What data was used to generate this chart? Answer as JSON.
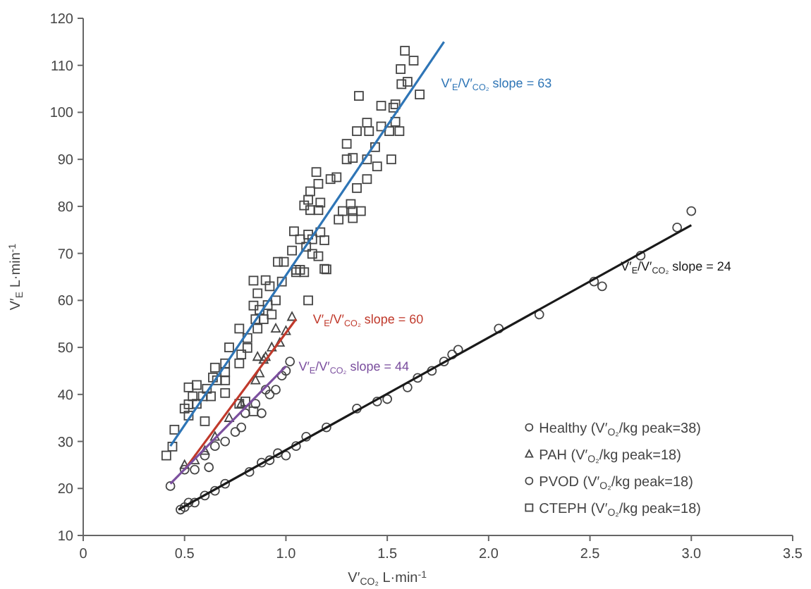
{
  "chart_data": {
    "type": "scatter",
    "xlabel": "V′$_{CO₂}$ L·min$^{-1}$",
    "ylabel": "V′$_{E}$ L·min$^{-1}$",
    "xlim": [
      0,
      3.5
    ],
    "ylim": [
      10,
      120
    ],
    "xticks": [
      0,
      {
        "value": 0.5,
        "label": "0.5"
      },
      {
        "value": 1,
        "label": "1.0"
      },
      {
        "value": 1.5,
        "label": "1.5"
      },
      {
        "value": 2,
        "label": "2.0"
      },
      {
        "value": 2.5,
        "label": "2.5"
      },
      {
        "value": 3,
        "label": "3.0"
      },
      {
        "value": 3.5,
        "label": "3.5"
      }
    ],
    "yticks": [
      10,
      20,
      30,
      40,
      50,
      60,
      70,
      80,
      90,
      100,
      110,
      120
    ],
    "grid": false,
    "legend": "bottom right",
    "series": [
      {
        "name": "Healthy (V′$_{O₂}$/kg peak=38)",
        "marker": "circle",
        "color": "#444444",
        "x": [
          0.48,
          0.5,
          0.52,
          0.55,
          0.6,
          0.65,
          0.7,
          0.82,
          0.88,
          0.92,
          0.96,
          1.0,
          1.05,
          1.1,
          1.2,
          1.35,
          1.45,
          1.5,
          1.6,
          1.65,
          1.72,
          1.78,
          1.82,
          1.85,
          2.05,
          2.25,
          2.52,
          2.56,
          2.75,
          2.93,
          3.0
        ],
        "values": [
          15.5,
          16,
          17,
          17,
          18.5,
          19.5,
          21,
          23.5,
          25.5,
          26,
          27.5,
          27,
          29,
          31,
          33,
          37,
          38.5,
          39,
          41.5,
          43.5,
          45,
          47,
          48.5,
          49.5,
          54,
          57,
          64,
          63,
          69.5,
          75.5,
          79
        ]
      },
      {
        "name": "PAH (V′$_{O₂}$/kg peak=18)",
        "marker": "triangle",
        "color": "#444444",
        "x": [
          0.5,
          0.55,
          0.6,
          0.65,
          0.72,
          0.78,
          0.85,
          0.86,
          0.87,
          0.89,
          0.9,
          0.93,
          0.95,
          0.97,
          1.0,
          1.03
        ],
        "values": [
          25,
          26,
          28,
          31,
          35,
          38,
          43,
          48,
          44.5,
          47.4,
          48,
          50,
          54,
          51,
          53.5,
          56.5
        ]
      },
      {
        "name": "PVOD (V′$_{O₂}$/kg peak=18)",
        "marker": "circle",
        "color": "#444444",
        "x": [
          0.43,
          0.5,
          0.55,
          0.6,
          0.62,
          0.65,
          0.7,
          0.75,
          0.78,
          0.8,
          0.85,
          0.88,
          0.9,
          0.92,
          0.95,
          0.98,
          1.0,
          1.02
        ],
        "values": [
          20.5,
          24,
          24,
          27,
          24.5,
          29,
          30,
          32,
          33,
          36,
          38,
          36,
          41,
          40,
          41,
          44,
          45,
          47
        ]
      },
      {
        "name": "CTEPH (V′$_{O₂}$/kg peak=18)",
        "marker": "square",
        "color": "#444444",
        "x": [
          1.587,
          1.63,
          1.566,
          1.57,
          1.6,
          1.66,
          1.36,
          1.54,
          1.47,
          1.53,
          1.54,
          1.4,
          1.35,
          1.41,
          1.47,
          1.51,
          1.56,
          1.3,
          1.44,
          1.3,
          1.33,
          1.4,
          1.45,
          1.52,
          1.4,
          1.35,
          1.15,
          1.22,
          1.25,
          1.16,
          1.12,
          1.11,
          1.09,
          1.17,
          1.12,
          1.16,
          1.32,
          1.33,
          1.37,
          1.33,
          1.26,
          1.28,
          1.04,
          1.11,
          1.17,
          1.07,
          1.13,
          1.19,
          1.03,
          1.1,
          1.16,
          1.13,
          0.96,
          0.99,
          1.19,
          1.05,
          1.07,
          0.84,
          0.9,
          1.05,
          1.09,
          1.2,
          1.11,
          0.92,
          0.98,
          0.86,
          0.84,
          0.87,
          0.91,
          0.95,
          0.85,
          0.89,
          0.93,
          0.86,
          0.77,
          0.81,
          0.81,
          0.72,
          0.78,
          0.77,
          0.7,
          0.65,
          0.7,
          0.64,
          0.56,
          0.52,
          0.61,
          0.66,
          0.7,
          0.54,
          0.59,
          0.63,
          0.52,
          0.56,
          0.7,
          0.5,
          0.52,
          0.6,
          0.45,
          0.44,
          0.41,
          0.84,
          0.77,
          0.8
        ],
        "values": [
          113.1,
          111,
          109.2,
          106,
          106.5,
          103.8,
          103.5,
          101.7,
          101.4,
          101,
          98,
          97.8,
          96,
          96,
          97,
          96,
          96,
          93.3,
          92.6,
          90,
          90.3,
          90,
          88.5,
          90,
          85.8,
          83.9,
          87.3,
          85.8,
          86.2,
          84.8,
          83.2,
          81.4,
          80.2,
          80.8,
          79.2,
          79.2,
          80.5,
          79,
          79,
          77.5,
          77.2,
          79,
          74.7,
          74,
          74.5,
          73,
          73,
          72.8,
          70.6,
          71.4,
          69.4,
          69.9,
          68.2,
          68.2,
          66.7,
          66.5,
          66.5,
          64.2,
          64.3,
          66,
          66,
          66.6,
          60,
          63,
          64,
          61.5,
          58.9,
          58,
          59,
          60,
          56,
          56,
          57,
          54,
          54,
          52,
          49.9,
          50,
          48.5,
          46.6,
          46.6,
          45.7,
          44.7,
          43.6,
          42,
          41.5,
          41.2,
          43,
          43,
          39.6,
          39.6,
          39.6,
          37.9,
          38,
          40.3,
          37,
          35.5,
          34.3,
          32.5,
          28.9,
          27,
          36.4,
          38,
          38.5
        ]
      },
      {
        "type": "line",
        "marker": "none",
        "color": "#2e75b6",
        "x": [
          0.43,
          1.78
        ],
        "values": [
          29,
          115
        ]
      },
      {
        "type": "line",
        "marker": "none",
        "color": "#c0392b",
        "x": [
          0.5,
          1.05
        ],
        "values": [
          24,
          56
        ]
      },
      {
        "type": "line",
        "marker": "none",
        "color": "#7b4f9e",
        "x": [
          0.43,
          1.0
        ],
        "values": [
          21,
          46
        ]
      },
      {
        "type": "line",
        "marker": "none",
        "color": "#1a1a1a",
        "x": [
          0.47,
          3.0
        ],
        "values": [
          15.5,
          76
        ]
      }
    ],
    "annotations": [
      "V′$_{E}$/V′$_{CO₂}$ slope = 63",
      "V′$_{E}$/V′$_{CO₂}$ slope = 60",
      "V′$_{E}$/V′$_{CO₂}$ slope = 44",
      "V′$_{E}$/V′$_{CO₂}$ slope = 24"
    ]
  }
}
